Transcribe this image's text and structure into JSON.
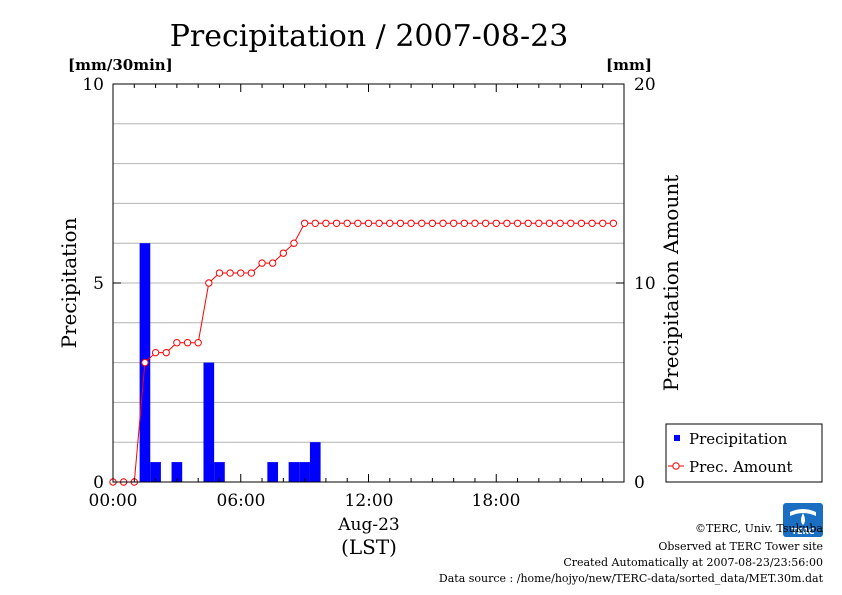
{
  "chart_data": {
    "type": "bar",
    "title": "Precipitation / 2007-08-23",
    "left_unit": "[mm/30min]",
    "right_unit": "[mm]",
    "ylabel": "Precipitation",
    "y2label": "Precipitation Amount",
    "ylim": [
      0,
      10
    ],
    "y2lim": [
      0,
      20
    ],
    "yticks": [
      "0",
      "5",
      "10"
    ],
    "y2ticks": [
      "0",
      "10",
      "20"
    ],
    "xticks": [
      "00:00",
      "06:00",
      "12:00",
      "18:00"
    ],
    "x_date_label": "Aug-23",
    "x_tz_label": "(LST)",
    "grid": true,
    "legend_position": "bottom-right",
    "series": [
      {
        "name": "Precipitation",
        "kind": "bar",
        "color": "#0000ff",
        "values": [
          0,
          0,
          6,
          0.5,
          0,
          0.5,
          0,
          0,
          3,
          0.5,
          0,
          0,
          0,
          0,
          0.5,
          0,
          0.5,
          0.5,
          1,
          0,
          0,
          0,
          0,
          0,
          0,
          0,
          0,
          0,
          0,
          0,
          0,
          0,
          0,
          0,
          0,
          0,
          0,
          0,
          0,
          0,
          0,
          0,
          0,
          0,
          0,
          0,
          0,
          0
        ]
      },
      {
        "name": "Prec. Amount",
        "kind": "line",
        "color": "#ff0000",
        "values": [
          0,
          0,
          0,
          6,
          6.5,
          6.5,
          7,
          7,
          7,
          10,
          10.5,
          10.5,
          10.5,
          10.5,
          11,
          11,
          11.5,
          12,
          13,
          13,
          13,
          13,
          13,
          13,
          13,
          13,
          13,
          13,
          13,
          13,
          13,
          13,
          13,
          13,
          13,
          13,
          13,
          13,
          13,
          13,
          13,
          13,
          13,
          13,
          13,
          13,
          13,
          13
        ]
      }
    ]
  },
  "credits": {
    "copyright": "©TERC, Univ. Tsukuba",
    "site": "Observed at TERC Tower site",
    "created": "Created Automatically at 2007-08-23/23:56:00",
    "source": "Data source : /home/hojyo/new/TERC-data/sorted_data/MET.30m.dat"
  },
  "logo": {
    "text": "TERC"
  }
}
